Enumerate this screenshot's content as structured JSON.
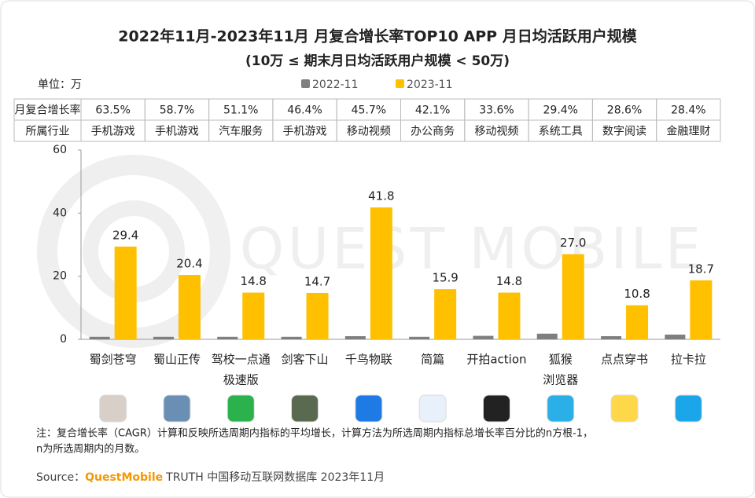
{
  "chart_data": {
    "type": "bar",
    "title": "2022年11月-2023年11月 月复合增长率TOP10 APP 月日均活跃用户规模",
    "subtitle": "(10万 ≤ 期末月日均活跃用户规模 < 50万)",
    "unit_label": "单位：万",
    "categories": [
      [
        "蜀剑苍穹"
      ],
      [
        "蜀山正传"
      ],
      [
        "驾校一点通",
        "极速版"
      ],
      [
        "剑客下山"
      ],
      [
        "千鸟物联"
      ],
      [
        "简篇"
      ],
      [
        "开拍action"
      ],
      [
        "狐猴",
        "浏览器"
      ],
      [
        "点点穿书"
      ],
      [
        "拉卡拉"
      ]
    ],
    "series": [
      {
        "name": "2022-11",
        "color": "#7f7f7f",
        "values": [
          0.8,
          0.8,
          0.8,
          0.8,
          1.0,
          0.8,
          1.1,
          1.8,
          1.0,
          1.5
        ]
      },
      {
        "name": "2023-11",
        "color": "#ffc000",
        "values": [
          29.4,
          20.4,
          14.8,
          14.7,
          41.8,
          15.9,
          14.8,
          27,
          10.8,
          18.7
        ],
        "value_labels": [
          "29.4",
          "20.4",
          "14.8",
          "14.7",
          "41.8",
          "15.9",
          "14.8",
          "27.0",
          "10.8",
          "18.7"
        ]
      }
    ],
    "ylim": [
      0,
      60
    ],
    "yticks": [
      0,
      20,
      40,
      60
    ],
    "table": {
      "row_labels": [
        "月复合增长率",
        "所属行业"
      ],
      "growth": [
        "63.5%",
        "58.7%",
        "51.1%",
        "46.4%",
        "45.7%",
        "42.1%",
        "33.6%",
        "29.4%",
        "28.6%",
        "28.4%"
      ],
      "industry": [
        "手机游戏",
        "手机游戏",
        "汽车服务",
        "手机游戏",
        "移动视频",
        "办公商务",
        "移动视频",
        "系统工具",
        "数字阅读",
        "金融理财"
      ]
    },
    "watermark": "QUEST MOBILE",
    "note": [
      "注：复合增长率（CAGR）计算和反映所选周期内指标的平均增长，计算方法为所选周期内指标总增长率百分比的n方根-1，",
      "n为所选周期内的月数。"
    ],
    "source": {
      "prefix": "Source：",
      "brand": "QuestMobile",
      "rest": "TRUTH 中国移动互联网数据库 2023年11月"
    }
  }
}
